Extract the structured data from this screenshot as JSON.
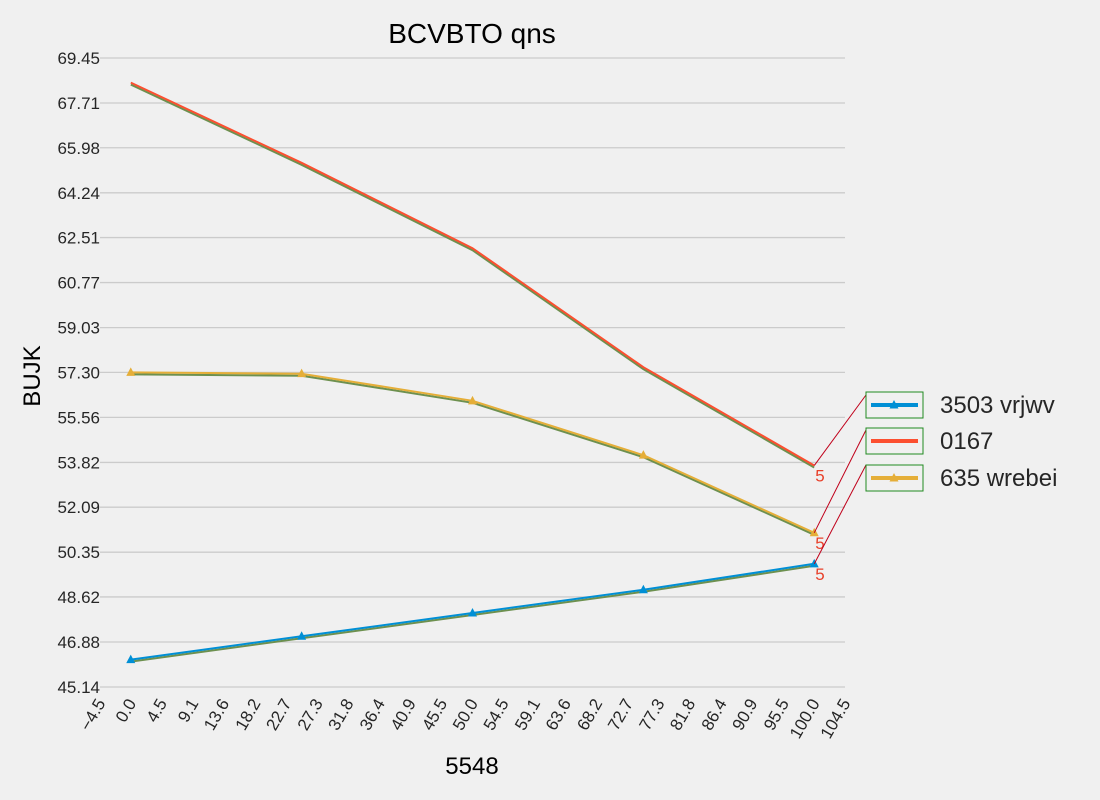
{
  "chart_data": {
    "type": "line",
    "title": "BCVBTO qns",
    "xlabel": "5548",
    "ylabel": "BUJK",
    "xlim": [
      -4.5,
      104.5
    ],
    "ylim": [
      45.14,
      69.45
    ],
    "x_ticks": [
      "−4.5",
      "0.0",
      "4.5",
      "9.1",
      "13.6",
      "18.2",
      "22.7",
      "27.3",
      "31.8",
      "36.4",
      "40.9",
      "45.5",
      "50.0",
      "54.5",
      "59.1",
      "63.6",
      "68.2",
      "72.7",
      "77.3",
      "81.8",
      "86.4",
      "90.9",
      "95.5",
      "100.0",
      "104.5"
    ],
    "y_ticks": [
      "45.14",
      "46.88",
      "48.62",
      "50.35",
      "52.09",
      "53.82",
      "55.56",
      "57.30",
      "59.03",
      "60.77",
      "62.51",
      "64.24",
      "65.98",
      "67.71",
      "69.45"
    ],
    "x": [
      0,
      25,
      50,
      75,
      100
    ],
    "grid": "horizontal",
    "legend_position": "right",
    "series": [
      {
        "name": "3503 vrjwv",
        "color": "#008fd5",
        "marker": "triangle",
        "values": [
          46.2,
          47.1,
          48.0,
          48.9,
          49.9
        ]
      },
      {
        "name": "0167",
        "color": "#fc4f30",
        "marker": "none",
        "values": [
          68.5,
          65.4,
          62.1,
          57.5,
          53.7
        ]
      },
      {
        "name": "635 wrebei",
        "color": "#e5ae38",
        "marker": "triangle",
        "values": [
          57.3,
          57.25,
          56.2,
          54.1,
          51.1
        ]
      }
    ],
    "annotations": [
      {
        "text": "5",
        "series": 1,
        "point": 4
      },
      {
        "text": "5",
        "series": 2,
        "point": 4
      },
      {
        "text": "5",
        "series": 0,
        "point": 4
      }
    ]
  }
}
